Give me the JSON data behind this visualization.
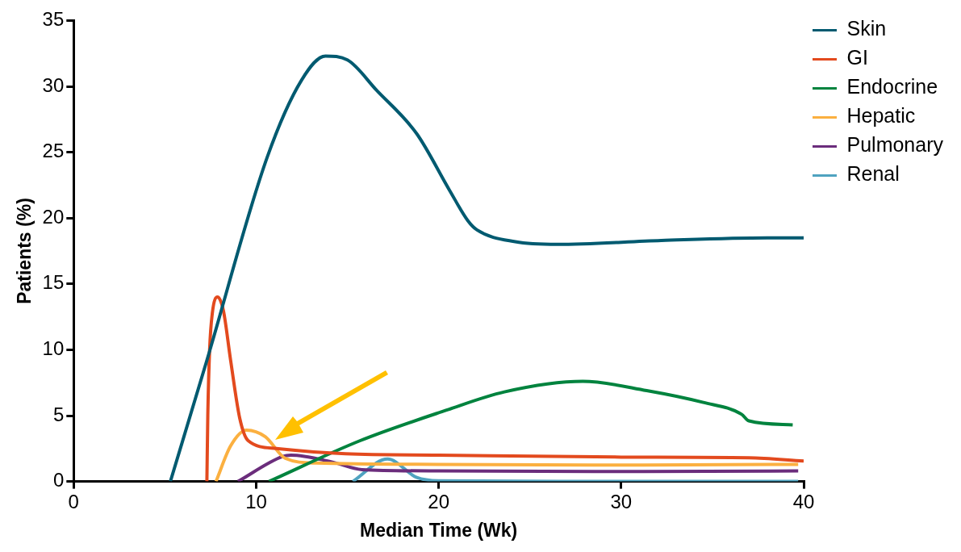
{
  "chart_data": {
    "type": "line",
    "xlabel": "Median Time (Wk)",
    "ylabel": "Patients (%)",
    "xlim": [
      0,
      40
    ],
    "ylim": [
      0,
      35
    ],
    "xticks": [
      0,
      10,
      20,
      30,
      40
    ],
    "yticks": [
      0,
      5,
      10,
      15,
      20,
      25,
      30,
      35
    ],
    "grid": false,
    "legend": "top right",
    "series": [
      {
        "name": "Skin",
        "color": "#005a70",
        "x": [
          5.3,
          7.3,
          10.6,
          12.5,
          13.8,
          15,
          16.6,
          18.8,
          20.6,
          21.6,
          22.1,
          24.2,
          26.5,
          32.2,
          38,
          40
        ],
        "values": [
          0,
          9.2,
          24.6,
          30.5,
          32.3,
          32,
          29.7,
          26.4,
          22.1,
          19.8,
          19.1,
          18.2,
          18.0,
          18.3,
          18.5,
          18.5
        ]
      },
      {
        "name": "GI",
        "color": "#e34a1e",
        "x": [
          7.3,
          7.35,
          7.45,
          7.6,
          7.88,
          8.2,
          8.6,
          9.1,
          9.56,
          11.1,
          14.9,
          20,
          30,
          37,
          40
        ],
        "values": [
          0,
          5,
          10,
          12.8,
          14,
          13,
          9.2,
          4.8,
          3.1,
          2.5,
          2.1,
          2.0,
          1.85,
          1.8,
          1.55
        ]
      },
      {
        "name": "Endocrine",
        "color": "#00833e",
        "x": [
          10.7,
          15.7,
          20.4,
          23.6,
          27.9,
          31.4,
          34.5,
          36.6,
          37.0,
          39.4
        ],
        "values": [
          0,
          3.1,
          5.4,
          6.8,
          7.6,
          6.9,
          6.0,
          5.1,
          4.6,
          4.3
        ]
      },
      {
        "name": "Hepatic",
        "color": "#fbb040",
        "x": [
          7.8,
          8.6,
          9.47,
          10.5,
          11.6,
          13.3,
          20,
          30,
          39.7
        ],
        "values": [
          0,
          2.7,
          3.9,
          3.4,
          1.75,
          1.4,
          1.3,
          1.25,
          1.3
        ]
      },
      {
        "name": "Pulmonary",
        "color": "#6b2d7c",
        "x": [
          9.0,
          11.45,
          11.9,
          14.1,
          15.8,
          20,
          30,
          39.7
        ],
        "values": [
          0,
          1.9,
          2.0,
          1.5,
          0.9,
          0.8,
          0.75,
          0.8
        ]
      },
      {
        "name": "Renal",
        "color": "#4fa3c0",
        "x": [
          15.3,
          17.2,
          18.8,
          20,
          30,
          39.7
        ],
        "values": [
          0,
          1.7,
          0.3,
          0.05,
          0,
          0
        ]
      }
    ]
  }
}
